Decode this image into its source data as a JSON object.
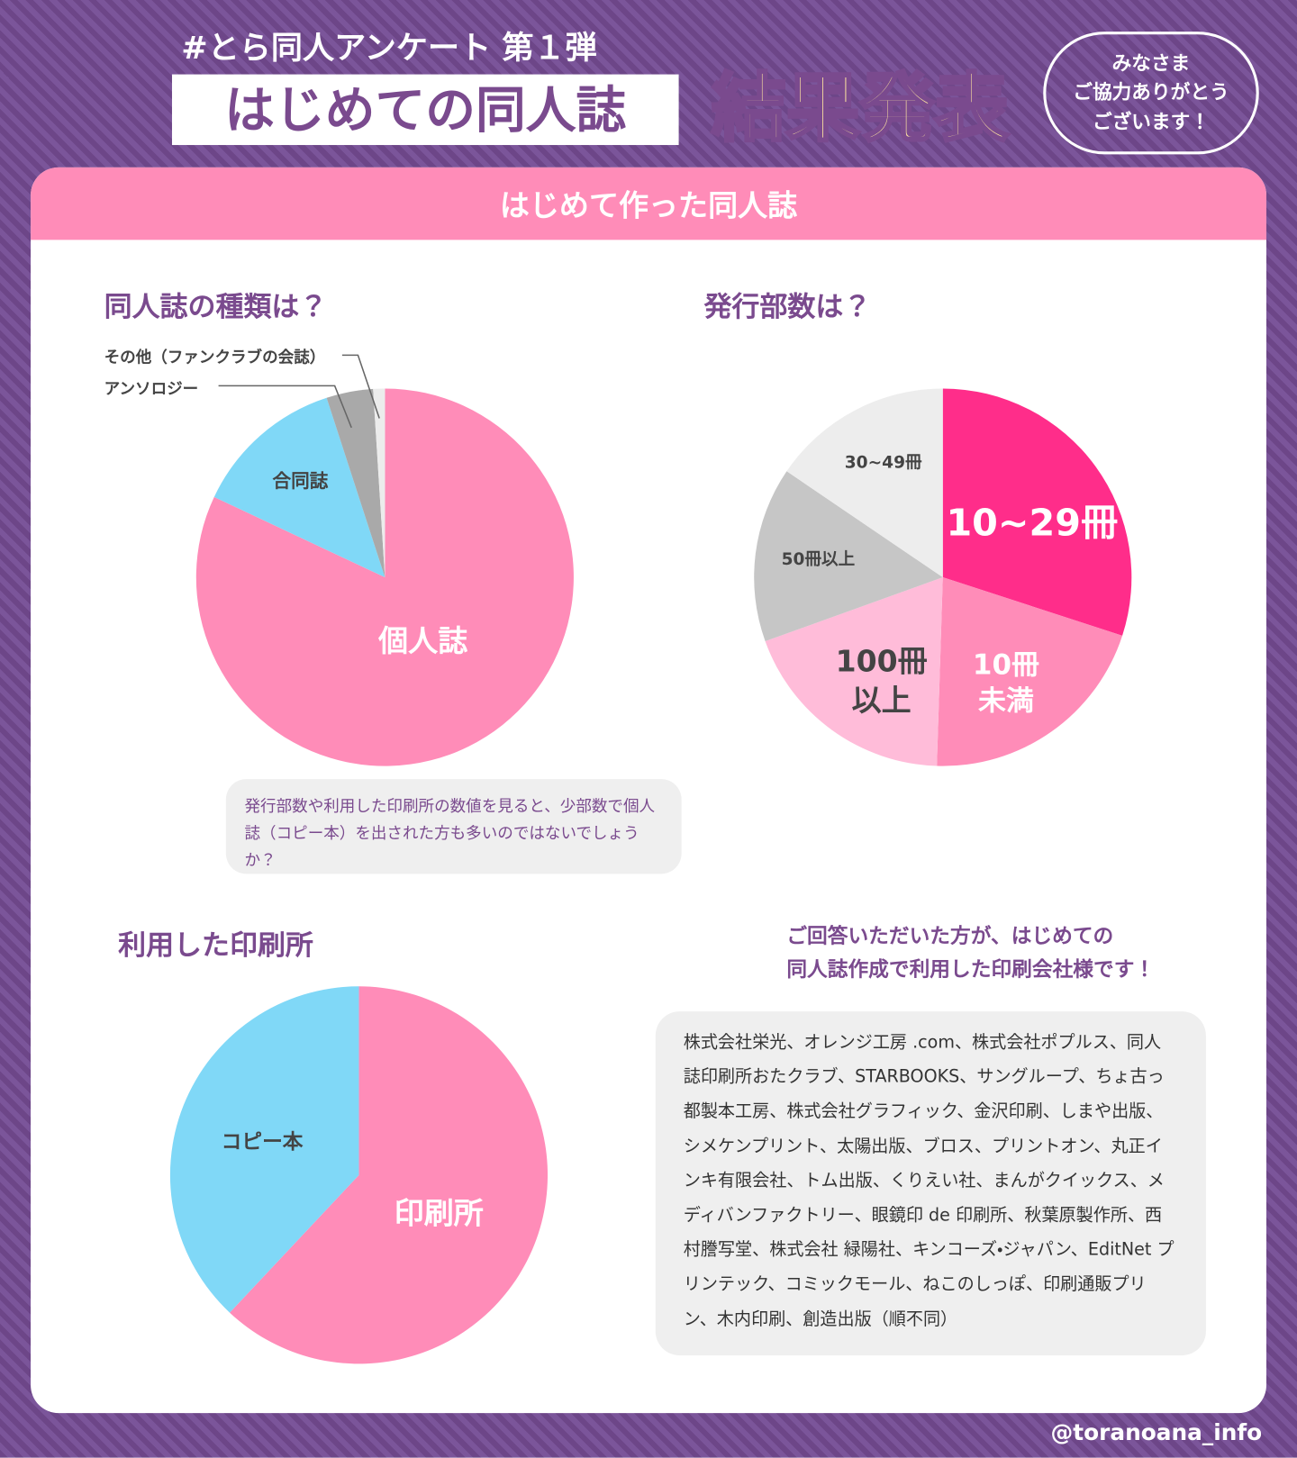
{
  "header": {
    "hashtag": "#とら同人アンケート 第１弾",
    "title": "はじめての同人誌",
    "headline": "結果発表",
    "thanks": "みなさま\nご協力ありがとう\nございます！"
  },
  "section_title": "はじめて作った同人誌",
  "chart_data": [
    {
      "type": "pie",
      "title": "同人誌の種類は？",
      "categories": [
        "個人誌",
        "合同誌",
        "アンソロジー",
        "その他（ファンクラブの会誌）"
      ],
      "values": [
        82,
        13,
        4,
        1
      ],
      "colors": [
        "#ff8cb8",
        "#80d8f7",
        "#a9a9a9",
        "#ececec"
      ]
    },
    {
      "type": "pie",
      "title": "発行部数は？",
      "categories": [
        "10~29冊",
        "10冊\n未満",
        "100冊\n以上",
        "50冊以上",
        "30~49冊"
      ],
      "values": [
        30,
        20.5,
        19,
        15,
        15.5
      ],
      "colors": [
        "#ff2d8a",
        "#ff8cb8",
        "#ffbcd9",
        "#c6c6c6",
        "#ededed"
      ]
    },
    {
      "type": "pie",
      "title": "利用した印刷所",
      "categories": [
        "印刷所",
        "コピー本"
      ],
      "values": [
        62,
        38
      ],
      "colors": [
        "#ff8cb8",
        "#80d8f7"
      ]
    }
  ],
  "comment": "発行部数や利用した印刷所の数値を見ると、少部数で個人誌（コピー本）を出された方も多いのではないでしょうか？",
  "printers_note": "ご回答いただいた方が、はじめての\n同人誌作成で利用した印刷会社様です！",
  "printers_list": "株式会社栄光、オレンジ工房 .com、株式会社ポプルス、同人誌印刷所おたクラブ、STARBOOKS、サングループ、ちょ古っ都製本工房、株式会社グラフィック、金沢印刷、しまや出版、シメケンプリント、太陽出版、ブロス、プリントオン、丸正インキ有限会社、トム出版、くりえい社、まんがクイックス、メディバンファクトリー、眼鏡印 de 印刷所、秋葉原製作所、西村謄写堂、株式会社 緑陽社、キンコーズ・ジャパン、EditNet プリンテック、コミックモール、ねこのしっぽ、印刷通販プリン、木内印刷、創造出版（順不同）",
  "footer": "@toranoana_info"
}
